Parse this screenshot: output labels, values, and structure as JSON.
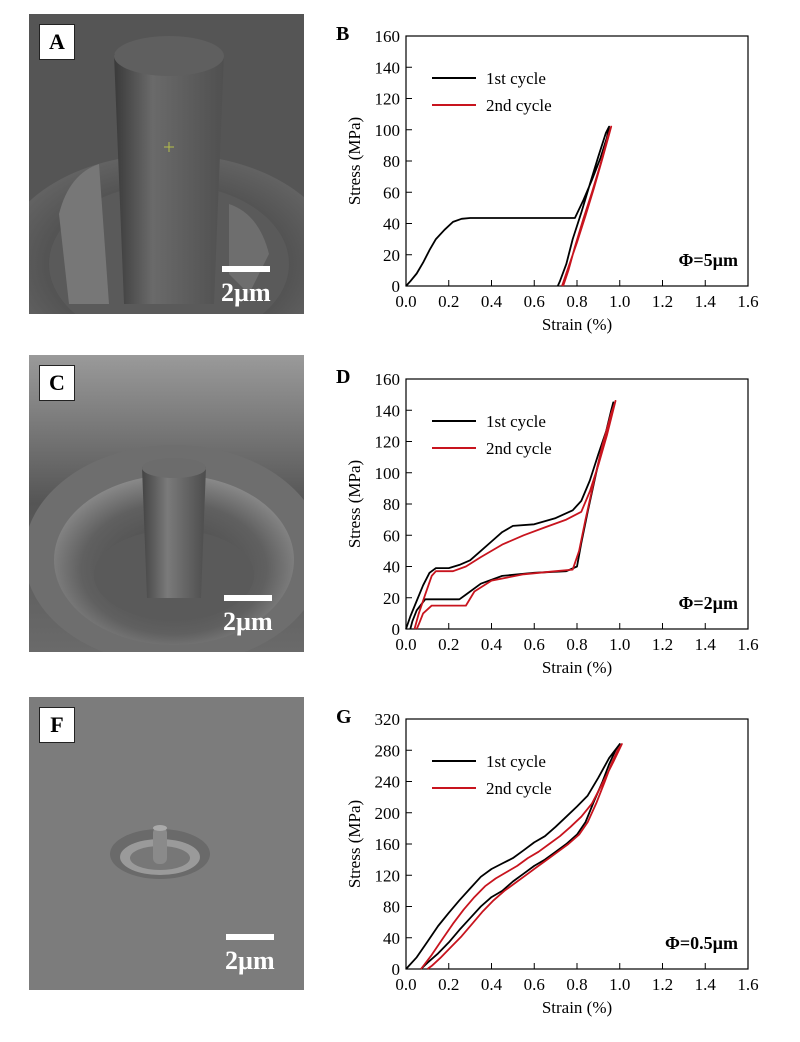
{
  "panels": [
    {
      "label": "A",
      "scale": "2µm"
    },
    {
      "label": "C",
      "scale": "2µm"
    },
    {
      "label": "F",
      "scale": "2µm"
    }
  ],
  "chart_data": [
    {
      "panel_label": "B",
      "type": "line",
      "xlabel": "Strain (%)",
      "ylabel": "Stress (MPa)",
      "xlim": [
        0,
        1.6
      ],
      "ylim": [
        0,
        160
      ],
      "xticks": [
        "0.0",
        "0.2",
        "0.4",
        "0.6",
        "0.8",
        "1.0",
        "1.2",
        "1.4",
        "1.6"
      ],
      "yticks": [
        "0",
        "20",
        "40",
        "60",
        "80",
        "100",
        "120",
        "140",
        "160"
      ],
      "annotation": "Φ=5µm",
      "legend_position": "top-left",
      "series": [
        {
          "name": "1st cycle",
          "color": "#000000",
          "points": [
            [
              0,
              0
            ],
            [
              0.02,
              3
            ],
            [
              0.05,
              8
            ],
            [
              0.08,
              15
            ],
            [
              0.11,
              23
            ],
            [
              0.14,
              30
            ],
            [
              0.18,
              36
            ],
            [
              0.22,
              41
            ],
            [
              0.26,
              43
            ],
            [
              0.3,
              43.5
            ],
            [
              0.5,
              43.5
            ],
            [
              0.7,
              43.5
            ],
            [
              0.79,
              43.5
            ],
            [
              0.83,
              55
            ],
            [
              0.87,
              68
            ],
            [
              0.91,
              82
            ],
            [
              0.94,
              95
            ],
            [
              0.95,
              102
            ],
            [
              0.935,
              98
            ],
            [
              0.9,
              83
            ],
            [
              0.86,
              65
            ],
            [
              0.82,
              47
            ],
            [
              0.78,
              30
            ],
            [
              0.75,
              14
            ],
            [
              0.72,
              3
            ],
            [
              0.71,
              0
            ]
          ]
        },
        {
          "name": "2nd cycle",
          "color": "#c8141e",
          "points": [
            [
              0.73,
              0
            ],
            [
              0.76,
              12
            ],
            [
              0.8,
              28
            ],
            [
              0.84,
              45
            ],
            [
              0.88,
              63
            ],
            [
              0.92,
              82
            ],
            [
              0.95,
              97
            ],
            [
              0.96,
              102
            ],
            [
              0.945,
              96
            ],
            [
              0.91,
              78
            ],
            [
              0.87,
              60
            ],
            [
              0.83,
              43
            ],
            [
              0.79,
              25
            ],
            [
              0.76,
              10
            ],
            [
              0.74,
              2
            ],
            [
              0.735,
              0
            ]
          ]
        }
      ]
    },
    {
      "panel_label": "D",
      "type": "line",
      "xlabel": "Strain (%)",
      "ylabel": "Stress (MPa)",
      "xlim": [
        0,
        1.6
      ],
      "ylim": [
        0,
        160
      ],
      "xticks": [
        "0.0",
        "0.2",
        "0.4",
        "0.6",
        "0.8",
        "1.0",
        "1.2",
        "1.4",
        "1.6"
      ],
      "yticks": [
        "0",
        "20",
        "40",
        "60",
        "80",
        "100",
        "120",
        "140",
        "160"
      ],
      "annotation": "Φ=2µm",
      "legend_position": "top-left",
      "series": [
        {
          "name": "1st cycle",
          "color": "#000000",
          "points": [
            [
              0,
              0
            ],
            [
              0.02,
              8
            ],
            [
              0.05,
              18
            ],
            [
              0.08,
              28
            ],
            [
              0.11,
              36
            ],
            [
              0.14,
              39
            ],
            [
              0.2,
              39
            ],
            [
              0.25,
              41
            ],
            [
              0.3,
              44
            ],
            [
              0.35,
              50
            ],
            [
              0.4,
              56
            ],
            [
              0.45,
              62
            ],
            [
              0.5,
              66
            ],
            [
              0.6,
              67
            ],
            [
              0.7,
              71
            ],
            [
              0.78,
              76
            ],
            [
              0.82,
              82
            ],
            [
              0.86,
              95
            ],
            [
              0.9,
              112
            ],
            [
              0.94,
              128
            ],
            [
              0.97,
              145
            ],
            [
              0.96,
              140
            ],
            [
              0.93,
              123
            ],
            [
              0.89,
              100
            ],
            [
              0.85,
              75
            ],
            [
              0.82,
              55
            ],
            [
              0.8,
              40
            ],
            [
              0.75,
              37
            ],
            [
              0.6,
              36
            ],
            [
              0.45,
              34
            ],
            [
              0.35,
              29
            ],
            [
              0.28,
              22
            ],
            [
              0.25,
              19
            ],
            [
              0.15,
              19
            ],
            [
              0.09,
              19
            ],
            [
              0.05,
              12
            ],
            [
              0.03,
              5
            ],
            [
              0.02,
              0
            ]
          ]
        },
        {
          "name": "2nd cycle",
          "color": "#c8141e",
          "points": [
            [
              0.04,
              0
            ],
            [
              0.06,
              10
            ],
            [
              0.09,
              22
            ],
            [
              0.12,
              34
            ],
            [
              0.14,
              37
            ],
            [
              0.22,
              37
            ],
            [
              0.28,
              40
            ],
            [
              0.35,
              46
            ],
            [
              0.45,
              54
            ],
            [
              0.55,
              60
            ],
            [
              0.65,
              65
            ],
            [
              0.75,
              70
            ],
            [
              0.82,
              75
            ],
            [
              0.86,
              88
            ],
            [
              0.9,
              105
            ],
            [
              0.94,
              124
            ],
            [
              0.98,
              146
            ],
            [
              0.96,
              138
            ],
            [
              0.92,
              118
            ],
            [
              0.88,
              95
            ],
            [
              0.84,
              70
            ],
            [
              0.81,
              50
            ],
            [
              0.78,
              38
            ],
            [
              0.7,
              37
            ],
            [
              0.55,
              35
            ],
            [
              0.4,
              31
            ],
            [
              0.32,
              24
            ],
            [
              0.28,
              15
            ],
            [
              0.2,
              15
            ],
            [
              0.12,
              15
            ],
            [
              0.08,
              10
            ],
            [
              0.06,
              3
            ],
            [
              0.05,
              0
            ]
          ]
        }
      ]
    },
    {
      "panel_label": "G",
      "type": "line",
      "xlabel": "Strain (%)",
      "ylabel": "Stress (MPa)",
      "xlim": [
        0,
        1.6
      ],
      "ylim": [
        0,
        320
      ],
      "xticks": [
        "0.0",
        "0.2",
        "0.4",
        "0.6",
        "0.8",
        "1.0",
        "1.2",
        "1.4",
        "1.6"
      ],
      "yticks": [
        "0",
        "40",
        "80",
        "120",
        "160",
        "200",
        "240",
        "280",
        "320"
      ],
      "annotation": "Φ=0.5µm",
      "legend_position": "top-left",
      "series": [
        {
          "name": "1st cycle",
          "color": "#000000",
          "points": [
            [
              0,
              0
            ],
            [
              0.05,
              15
            ],
            [
              0.1,
              35
            ],
            [
              0.15,
              55
            ],
            [
              0.2,
              72
            ],
            [
              0.25,
              88
            ],
            [
              0.3,
              103
            ],
            [
              0.35,
              118
            ],
            [
              0.4,
              128
            ],
            [
              0.45,
              135
            ],
            [
              0.5,
              142
            ],
            [
              0.55,
              152
            ],
            [
              0.6,
              162
            ],
            [
              0.65,
              170
            ],
            [
              0.7,
              182
            ],
            [
              0.75,
              195
            ],
            [
              0.8,
              208
            ],
            [
              0.85,
              222
            ],
            [
              0.9,
              245
            ],
            [
              0.95,
              270
            ],
            [
              1.0,
              288
            ],
            [
              0.98,
              280
            ],
            [
              0.95,
              262
            ],
            [
              0.92,
              240
            ],
            [
              0.88,
              215
            ],
            [
              0.84,
              188
            ],
            [
              0.8,
              172
            ],
            [
              0.75,
              160
            ],
            [
              0.7,
              150
            ],
            [
              0.65,
              140
            ],
            [
              0.6,
              132
            ],
            [
              0.55,
              122
            ],
            [
              0.5,
              112
            ],
            [
              0.45,
              100
            ],
            [
              0.4,
              92
            ],
            [
              0.35,
              80
            ],
            [
              0.3,
              65
            ],
            [
              0.25,
              50
            ],
            [
              0.2,
              34
            ],
            [
              0.15,
              20
            ],
            [
              0.1,
              8
            ],
            [
              0.07,
              0
            ]
          ]
        },
        {
          "name": "2nd cycle",
          "color": "#c8141e",
          "points": [
            [
              0.07,
              0
            ],
            [
              0.12,
              18
            ],
            [
              0.17,
              38
            ],
            [
              0.22,
              58
            ],
            [
              0.27,
              76
            ],
            [
              0.32,
              92
            ],
            [
              0.37,
              106
            ],
            [
              0.42,
              116
            ],
            [
              0.47,
              124
            ],
            [
              0.52,
              132
            ],
            [
              0.57,
              142
            ],
            [
              0.62,
              150
            ],
            [
              0.67,
              160
            ],
            [
              0.72,
              170
            ],
            [
              0.77,
              182
            ],
            [
              0.82,
              195
            ],
            [
              0.87,
              212
            ],
            [
              0.92,
              238
            ],
            [
              0.97,
              265
            ],
            [
              1.01,
              288
            ],
            [
              0.99,
              280
            ],
            [
              0.96,
              262
            ],
            [
              0.93,
              240
            ],
            [
              0.89,
              212
            ],
            [
              0.85,
              188
            ],
            [
              0.81,
              172
            ],
            [
              0.76,
              160
            ],
            [
              0.71,
              150
            ],
            [
              0.66,
              140
            ],
            [
              0.61,
              130
            ],
            [
              0.56,
              120
            ],
            [
              0.51,
              110
            ],
            [
              0.46,
              100
            ],
            [
              0.41,
              88
            ],
            [
              0.36,
              74
            ],
            [
              0.31,
              58
            ],
            [
              0.26,
              42
            ],
            [
              0.21,
              28
            ],
            [
              0.16,
              14
            ],
            [
              0.12,
              4
            ],
            [
              0.1,
              0
            ]
          ]
        }
      ]
    }
  ]
}
